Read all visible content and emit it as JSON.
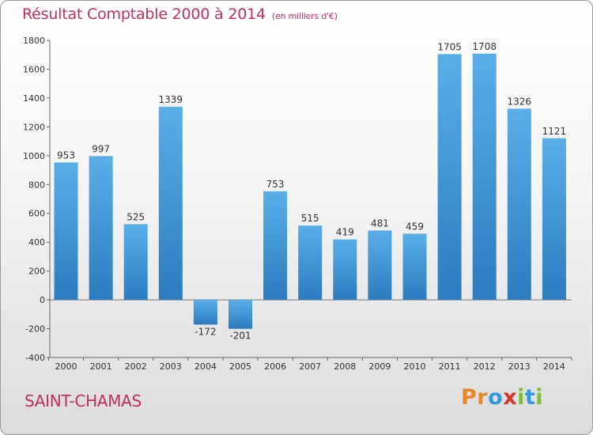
{
  "chart_data": {
    "type": "bar",
    "title": "Résultat Comptable 2000 à 2014",
    "subtitle": "(en milliers d'€)",
    "categories": [
      "2000",
      "2001",
      "2002",
      "2003",
      "2004",
      "2005",
      "2006",
      "2007",
      "2008",
      "2009",
      "2010",
      "2011",
      "2012",
      "2013",
      "2014"
    ],
    "values": [
      953,
      997,
      525,
      1339,
      -172,
      -201,
      753,
      515,
      419,
      481,
      459,
      1705,
      1708,
      1326,
      1121
    ],
    "value_labels": [
      "953",
      "997",
      "525",
      "1339",
      "-172",
      "-201",
      "753",
      "515",
      "419",
      "481",
      "459",
      "1705",
      "1708",
      "1326",
      "1121"
    ],
    "ylim": [
      -400,
      1800
    ],
    "yticks": [
      "-400",
      "-200",
      "0",
      "200",
      "400",
      "600",
      "800",
      "1000",
      "1200",
      "1400",
      "1600",
      "1800"
    ],
    "grid": false,
    "bar_color_top": "#5aaee8",
    "bar_color_bottom": "#2b7cc0"
  },
  "footer": {
    "commune": "SAINT-CHAMAS",
    "logo_letters": [
      {
        "ch": "P",
        "color": "#e8862a"
      },
      {
        "ch": "r",
        "color": "#e8862a"
      },
      {
        "ch": "o",
        "color": "#2f9be0"
      },
      {
        "ch": "x",
        "color": "#d8342c"
      },
      {
        "ch": "i",
        "color": "#7cbf3a"
      },
      {
        "ch": "t",
        "color": "#2f9be0"
      },
      {
        "ch": "i",
        "color": "#7cbf3a"
      }
    ]
  }
}
